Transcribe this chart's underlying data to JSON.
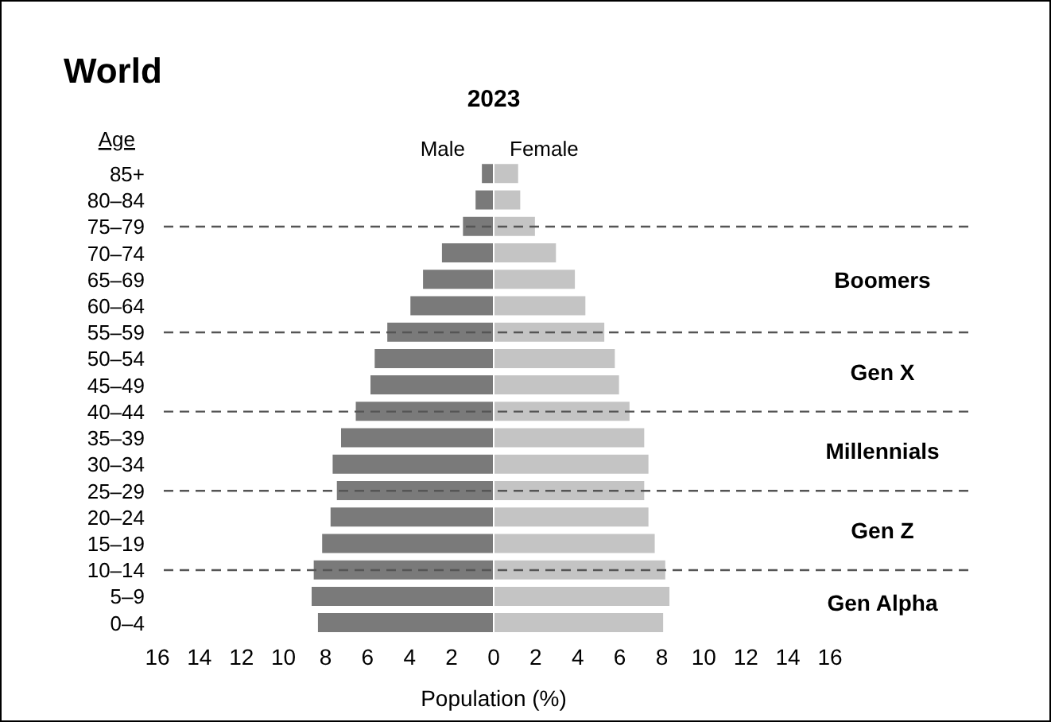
{
  "chart_data": {
    "type": "bar",
    "orientation": "horizontal",
    "title": "World",
    "subtitle": "2023",
    "ylabel": "Age",
    "xlabel": "Population (%)",
    "categories": [
      "85+",
      "80–84",
      "75–79",
      "70–74",
      "65–69",
      "60–64",
      "55–59",
      "50–54",
      "45–49",
      "40–44",
      "35–39",
      "30–34",
      "25–29",
      "20–24",
      "15–19",
      "10–14",
      "5–9",
      "0–4"
    ],
    "series": [
      {
        "name": "Male",
        "color": "#7a7a7a",
        "values": [
          -0.6,
          -0.9,
          -1.5,
          -2.5,
          -3.4,
          -4.0,
          -5.1,
          -5.7,
          -5.9,
          -6.6,
          -7.3,
          -7.7,
          -7.5,
          -7.8,
          -8.2,
          -8.6,
          -8.7,
          -8.4
        ]
      },
      {
        "name": "Female",
        "color": "#c4c4c4",
        "values": [
          1.2,
          1.3,
          2.0,
          3.0,
          3.9,
          4.4,
          5.3,
          5.8,
          6.0,
          6.5,
          7.2,
          7.4,
          7.2,
          7.4,
          7.7,
          8.2,
          8.4,
          8.1
        ]
      }
    ],
    "xlim": [
      -16,
      16
    ],
    "xticks": [
      {
        "value": -16,
        "label": "16"
      },
      {
        "value": -14,
        "label": "14"
      },
      {
        "value": -12,
        "label": "12"
      },
      {
        "value": -10,
        "label": "10"
      },
      {
        "value": -8,
        "label": "8"
      },
      {
        "value": -6,
        "label": "6"
      },
      {
        "value": -4,
        "label": "4"
      },
      {
        "value": -2,
        "label": "2"
      },
      0,
      2,
      4,
      6,
      8,
      10,
      12,
      14,
      16
    ],
    "ref_lines": [
      {
        "axis": "y",
        "value": "75–79",
        "color": "#555555",
        "line_style": "dashed"
      },
      {
        "axis": "y",
        "value": "55–59",
        "color": "#555555",
        "line_style": "dashed"
      },
      {
        "axis": "y",
        "value": "40–44",
        "color": "#555555",
        "line_style": "dashed"
      },
      {
        "axis": "y",
        "value": "25–29",
        "color": "#555555",
        "line_style": "dashed"
      },
      {
        "axis": "y",
        "value": "10–14",
        "color": "#555555",
        "line_style": "dashed"
      }
    ],
    "annotations": [
      "Boomers",
      "Gen X",
      "Millennials",
      "Gen Z",
      "Gen Alpha"
    ],
    "stacked": true,
    "grid": false,
    "legend": false
  }
}
